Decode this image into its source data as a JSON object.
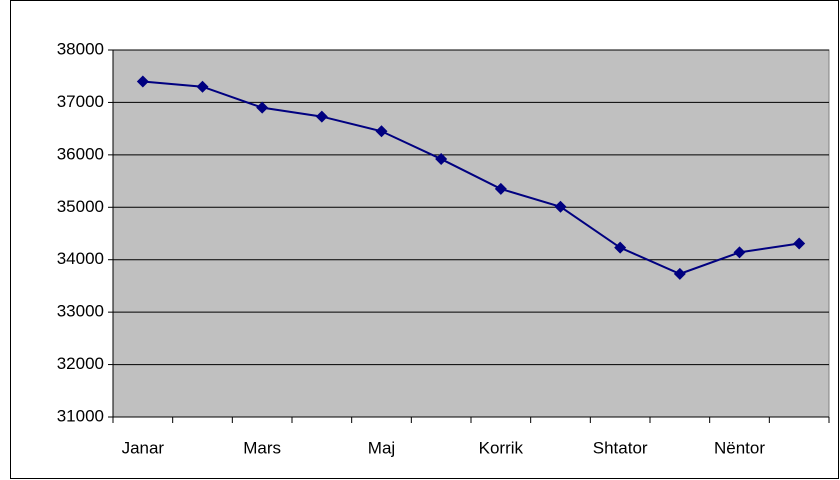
{
  "chart_data": {
    "type": "line",
    "categories": [
      "Janar",
      null,
      "Mars",
      null,
      "Maj",
      null,
      "Korrik",
      null,
      "Shtator",
      null,
      "Nëntor",
      null
    ],
    "series": [
      {
        "color": "#000080",
        "values": [
          37400,
          37300,
          36900,
          36730,
          36450,
          35920,
          35350,
          35010,
          34230,
          33730,
          34140,
          34310
        ]
      }
    ],
    "ylim": [
      31000,
      38000
    ],
    "yticks": [
      31000,
      32000,
      33000,
      34000,
      35000,
      36000,
      37000,
      38000
    ],
    "grid": true,
    "plot_background": "#c0c0c0"
  }
}
